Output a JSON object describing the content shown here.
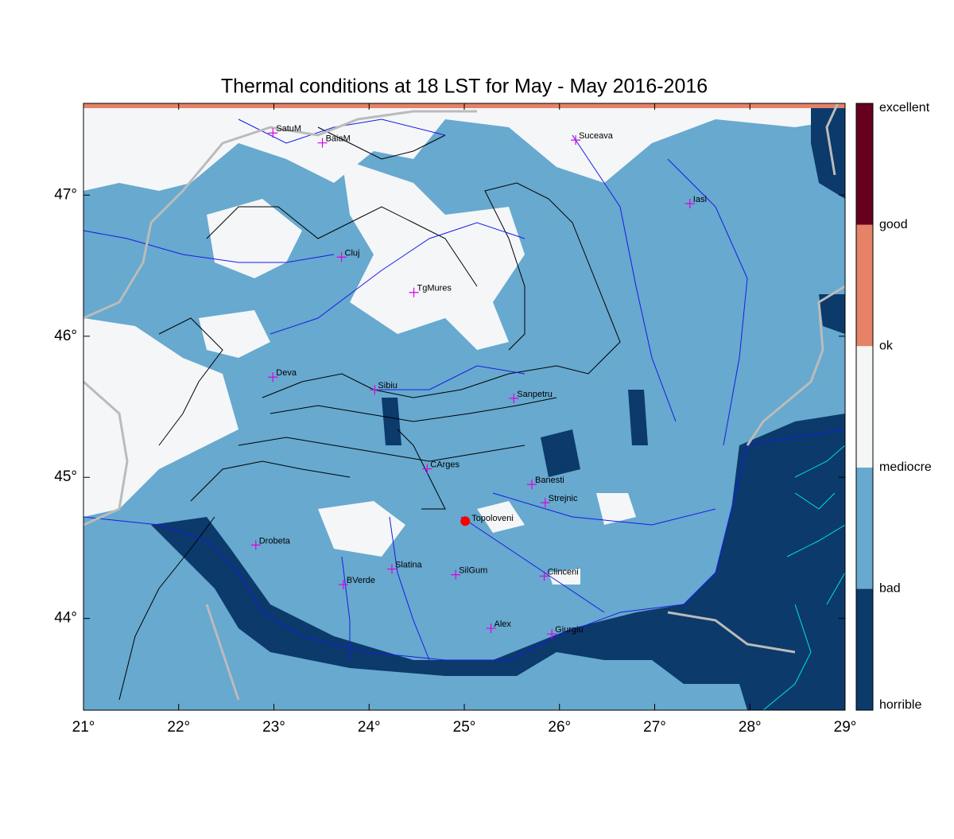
{
  "map_data": {
    "title": "Thermal conditions at 18 LST for May - May  2016-2016",
    "xlim": [
      21,
      29
    ],
    "ylim": [
      43.35,
      47.65
    ],
    "xticks": [
      {
        "value": 21,
        "label": "21°"
      },
      {
        "value": 22,
        "label": "22°"
      },
      {
        "value": 23,
        "label": "23°"
      },
      {
        "value": 24,
        "label": "24°"
      },
      {
        "value": 25,
        "label": "25°"
      },
      {
        "value": 26,
        "label": "26°"
      },
      {
        "value": 27,
        "label": "27°"
      },
      {
        "value": 28,
        "label": "28°"
      },
      {
        "value": 29,
        "label": "29°"
      }
    ],
    "yticks": [
      {
        "value": 44,
        "label": "44°"
      },
      {
        "value": 45,
        "label": "45°"
      },
      {
        "value": 46,
        "label": "46°"
      },
      {
        "value": 47,
        "label": "47°"
      }
    ],
    "colorbar": {
      "labels": [
        "horrible",
        "bad",
        "mediocre",
        "ok",
        "good",
        "excellent"
      ],
      "colors": [
        "#0b3a6b",
        "#67a9cf",
        "#f4f6f8",
        "#e58267",
        "#67001f"
      ]
    },
    "cities": [
      {
        "name": "SatuM",
        "lon": 22.99,
        "lat": 47.44
      },
      {
        "name": "BaiaM",
        "lon": 23.51,
        "lat": 47.37
      },
      {
        "name": "Suceava",
        "lon": 26.17,
        "lat": 47.39
      },
      {
        "name": "Iasi",
        "lon": 27.37,
        "lat": 46.94
      },
      {
        "name": "Cluj",
        "lon": 23.71,
        "lat": 46.56
      },
      {
        "name": "TgMures",
        "lon": 24.47,
        "lat": 46.31
      },
      {
        "name": "Deva",
        "lon": 22.99,
        "lat": 45.71
      },
      {
        "name": "Sibiu",
        "lon": 24.06,
        "lat": 45.62
      },
      {
        "name": "Sanpetru",
        "lon": 25.52,
        "lat": 45.56
      },
      {
        "name": "CArges",
        "lon": 24.61,
        "lat": 45.06
      },
      {
        "name": "Banesti",
        "lon": 25.71,
        "lat": 44.95
      },
      {
        "name": "Strejnic",
        "lon": 25.85,
        "lat": 44.82
      },
      {
        "name": "Drobeta",
        "lon": 22.81,
        "lat": 44.52
      },
      {
        "name": "Slatina",
        "lon": 24.24,
        "lat": 44.35
      },
      {
        "name": "SilGum",
        "lon": 24.91,
        "lat": 44.31
      },
      {
        "name": "Clinceni",
        "lon": 25.84,
        "lat": 44.3
      },
      {
        "name": "BVerde",
        "lon": 23.73,
        "lat": 44.24
      },
      {
        "name": "Alex",
        "lon": 25.28,
        "lat": 43.93
      },
      {
        "name": "Giurgiu",
        "lon": 25.92,
        "lat": 43.89
      }
    ],
    "site": {
      "name": "Topoloveni",
      "lon": 25.01,
      "lat": 44.69
    }
  }
}
